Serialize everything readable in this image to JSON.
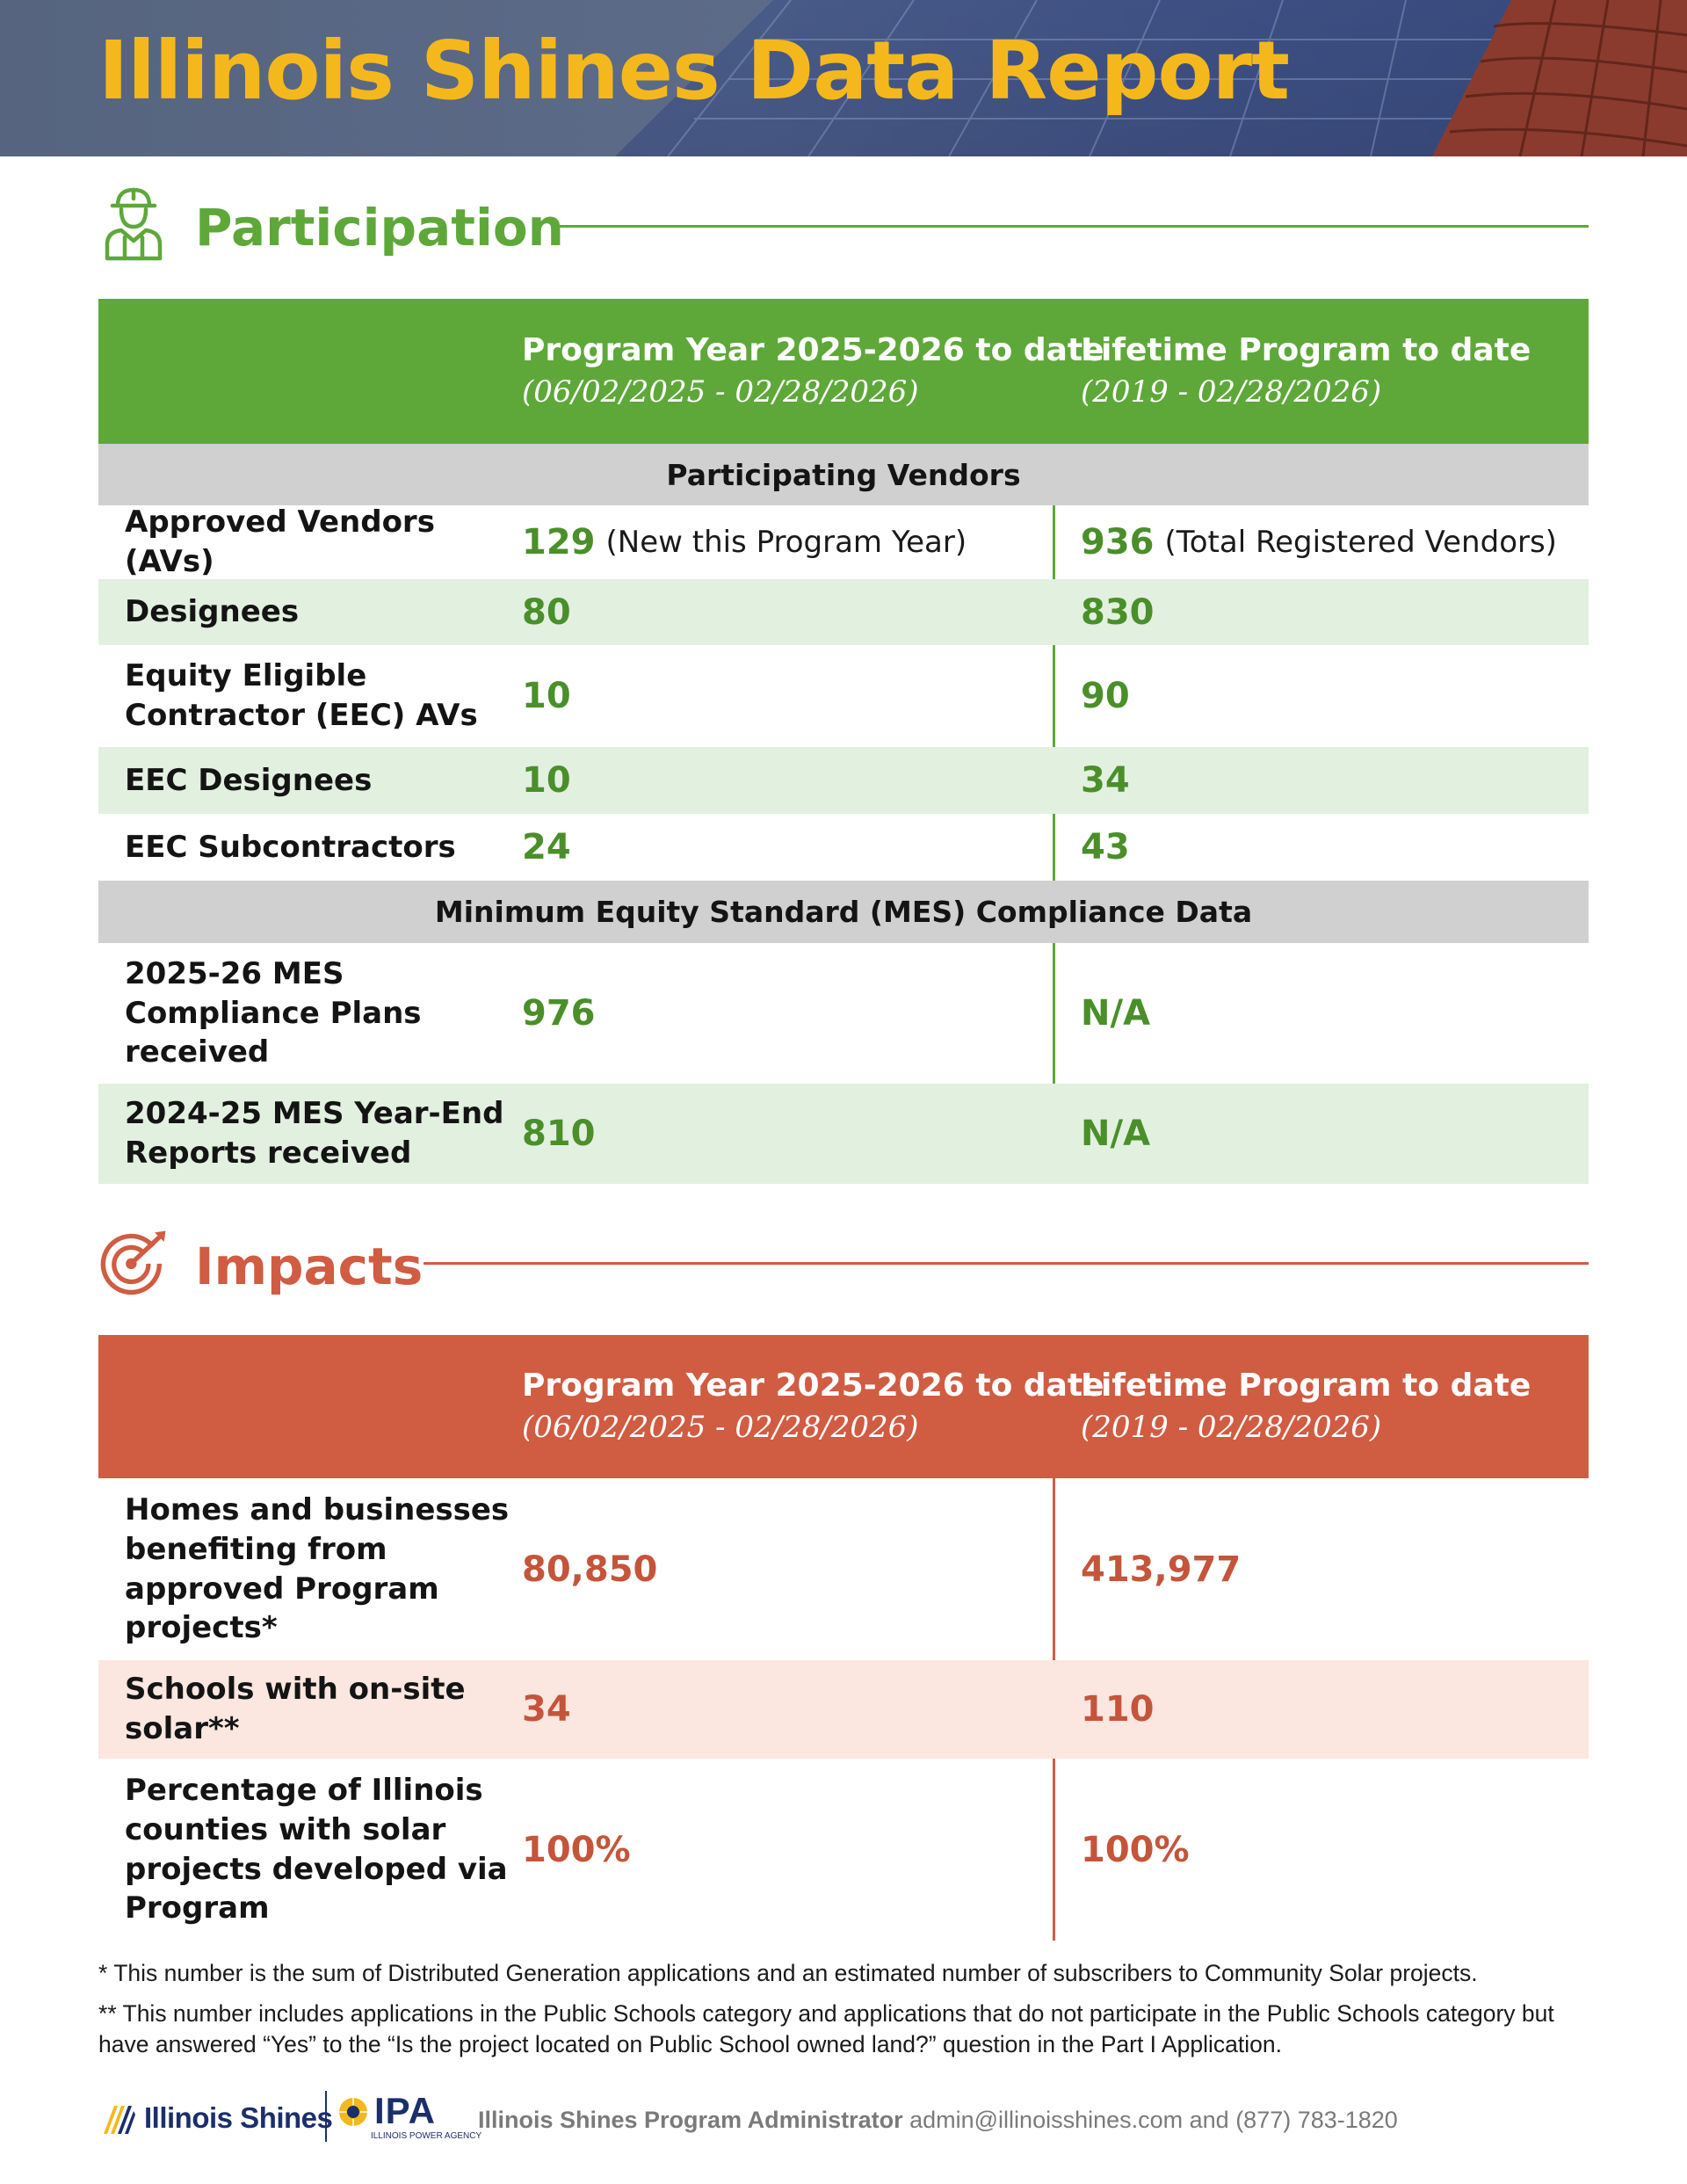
{
  "banner": {
    "title": "Illinois Shines Data Report"
  },
  "participation": {
    "section_title": "Participation",
    "header": {
      "col1_title": "Program Year 2025-2026 to date",
      "col1_dates": "(06/02/2025 - 02/28/2026)",
      "col2_title": "Lifetime Program to date",
      "col2_dates": "(2019 - 02/28/2026)"
    },
    "group_vendors": "Participating Vendors",
    "rows_vendors": [
      {
        "label": "Approved Vendors (AVs)",
        "v1": "129",
        "v1_note": "(New this Program Year)",
        "v2": "936",
        "v2_note": "(Total Registered Vendors)"
      },
      {
        "label": "Designees",
        "v1": "80",
        "v2": "830"
      },
      {
        "label": "Equity Eligible Contractor (EEC) AVs",
        "v1": "10",
        "v2": "90"
      },
      {
        "label": "EEC Designees",
        "v1": "10",
        "v2": "34"
      },
      {
        "label": "EEC Subcontractors",
        "v1": "24",
        "v2": "43"
      }
    ],
    "group_mes": "Minimum Equity Standard (MES) Compliance Data",
    "rows_mes": [
      {
        "label": "2025-26 MES Compliance Plans received",
        "v1": "976",
        "v2": "N/A"
      },
      {
        "label": "2024-25 MES Year-End Reports received",
        "v1": "810",
        "v2": "N/A"
      }
    ]
  },
  "impacts": {
    "section_title": "Impacts",
    "header": {
      "col1_title": "Program Year 2025-2026 to date",
      "col1_dates": "(06/02/2025 - 02/28/2026)",
      "col2_title": "Lifetime Program to date",
      "col2_dates": "(2019 - 02/28/2026)"
    },
    "rows": [
      {
        "label": "Homes and businesses benefiting from approved Program projects*",
        "v1": "80,850",
        "v2": "413,977"
      },
      {
        "label": "Schools with on-site solar**",
        "v1": "34",
        "v2": "110"
      },
      {
        "label": "Percentage of Illinois counties with solar projects developed via Program",
        "v1": "100%",
        "v2": "100%"
      }
    ]
  },
  "footnotes": {
    "note1": "* This number is the sum of Distributed Generation applications and an estimated number of subscribers to Community Solar projects.",
    "note2": "** This number includes applications in the Public Schools category and applications that do not participate in the Public Schools category but have answered “Yes” to the “Is the project located on Public School owned land?” question in the Part I Application."
  },
  "footer": {
    "logo_illinois_shines": "Illinois Shines",
    "logo_ipa": "IPA",
    "logo_ipa_sub": "ILLINOIS POWER AGENCY",
    "contact_label": "Illinois Shines Program Administrator",
    "contact_details": "admin@illinoisshines.com and (877) 783-1820"
  },
  "colors": {
    "banner_title": "#f5b81c",
    "participation": "#5ea83a",
    "impacts": "#d05c42",
    "brand_navy": "#1b2f6b"
  }
}
